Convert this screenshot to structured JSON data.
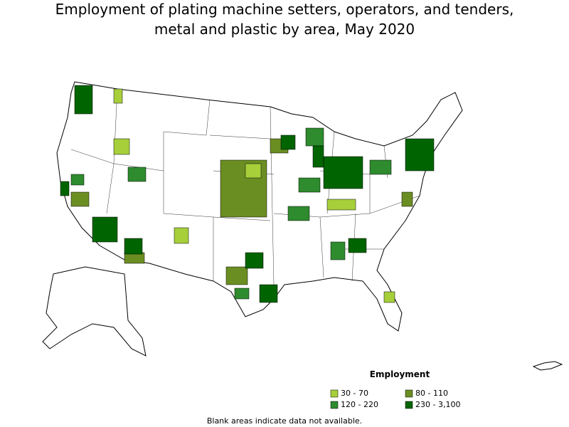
{
  "title": [
    "Employment of plating machine setters, operators, and tenders,",
    "metal and plastic by area, May 2020"
  ],
  "legend": {
    "title": "Employment",
    "items": [
      {
        "label": "30 - 70",
        "color": "#a6cf3a"
      },
      {
        "label": "80 - 110",
        "color": "#6b8e23"
      },
      {
        "label": "120 - 220",
        "color": "#2e8b2e"
      },
      {
        "label": "230 - 3,100",
        "color": "#006400"
      }
    ]
  },
  "note": "Blank areas indicate data not available."
}
